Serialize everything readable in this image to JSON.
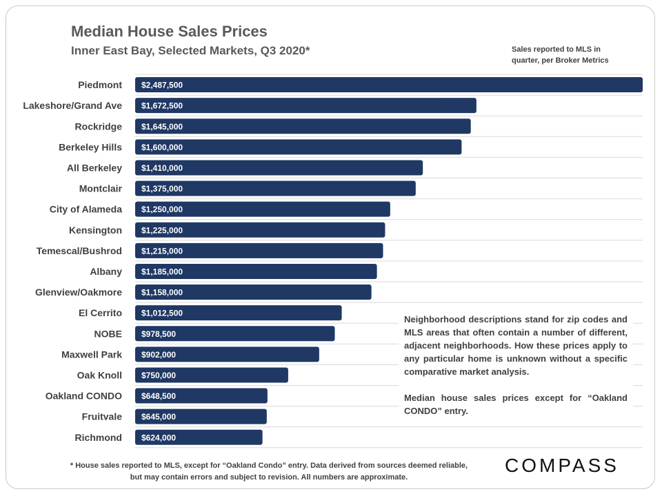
{
  "header": {
    "title": "Median House Sales Prices",
    "subtitle": "Inner East Bay, Selected Markets, Q3 2020*"
  },
  "source_note": "Sales reported to MLS in quarter, per Broker Metrics",
  "note": {
    "paragraph1": "Neighborhood descriptions stand for zip codes and MLS areas that often contain a number of different, adjacent neighborhoods. How these prices apply to any particular home is unknown without a specific comparative market analysis.",
    "paragraph2": "Median house sales prices except for “Oakland CONDO” entry."
  },
  "footnote": "* House sales reported to MLS, except for “Oakland Condo” entry. Data derived from sources deemed reliable, but may contain errors and subject to revision. All numbers are approximate.",
  "logo": "COMPASS",
  "colors": {
    "bar": "#1f3864",
    "bar_label": "#ffffff",
    "category_label": "#404040",
    "gridline": "#d9d9d9"
  },
  "chart_data": {
    "type": "bar",
    "orientation": "horizontal",
    "categories": [
      "Piedmont",
      "Lakeshore/Grand Ave",
      "Rockridge",
      "Berkeley Hills",
      "All Berkeley",
      "Montclair",
      "City of Alameda",
      "Kensington",
      "Temescal/Bushrod",
      "Albany",
      "Glenview/Oakmore",
      "El Cerrito",
      "NOBE",
      "Maxwell Park",
      "Oak Knoll",
      "Oakland CONDO",
      "Fruitvale",
      "Richmond"
    ],
    "values": [
      2487500,
      1672500,
      1645000,
      1600000,
      1410000,
      1375000,
      1250000,
      1225000,
      1215000,
      1185000,
      1158000,
      1012500,
      978500,
      902000,
      750000,
      648500,
      645000,
      624000
    ],
    "labels": [
      "$2,487,500",
      "$1,672,500",
      "$1,645,000",
      "$1,600,000",
      "$1,410,000",
      "$1,375,000",
      "$1,250,000",
      "$1,225,000",
      "$1,215,000",
      "$1,185,000",
      "$1,158,000",
      "$1,012,500",
      "$978,500",
      "$902,000",
      "$750,000",
      "$648,500",
      "$645,000",
      "$624,000"
    ],
    "xlim": [
      0,
      2487500
    ],
    "grid": true,
    "legend": "none"
  }
}
